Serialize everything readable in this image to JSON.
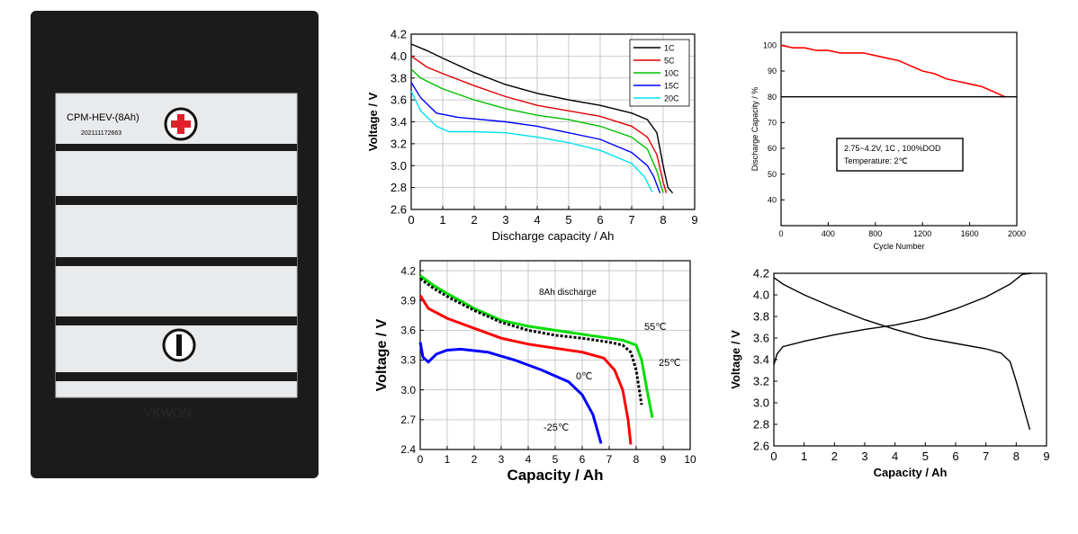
{
  "battery_photo": {
    "model_label": "CPM-HEV-(8Ah)",
    "serial_label": "202111172663",
    "positive_symbol": "+",
    "brand_mark": "VKWON"
  },
  "colors": {
    "1C": "#000000",
    "5C": "#e00000",
    "10C": "#00c000",
    "15C": "#0000ff",
    "20C": "#00e0f0",
    "55C": "#00dd00",
    "25C": "#000000",
    "0C": "#ff0000",
    "-25C": "#0000ff",
    "cycle": "#ff0000",
    "reference": "#000000"
  },
  "chart_data": [
    {
      "type": "line",
      "xlabel": "Discharge capacity / Ah",
      "ylabel": "Voltage / V",
      "xlim": [
        0,
        9
      ],
      "ylim": [
        2.6,
        4.2
      ],
      "xticks": [
        0,
        1,
        2,
        3,
        4,
        5,
        6,
        7,
        8,
        9
      ],
      "yticks": [
        2.6,
        2.8,
        3.0,
        3.2,
        3.4,
        3.6,
        3.8,
        4.0,
        4.2
      ],
      "grid": true,
      "legend": "top-right",
      "series": [
        {
          "name": "1C",
          "color_key": "1C",
          "x": [
            0,
            0.5,
            1,
            2,
            3,
            4,
            5,
            6,
            7,
            7.5,
            7.8,
            8.0,
            8.15,
            8.3
          ],
          "y": [
            4.11,
            4.05,
            3.98,
            3.85,
            3.74,
            3.66,
            3.6,
            3.55,
            3.48,
            3.42,
            3.3,
            3.0,
            2.8,
            2.75
          ]
        },
        {
          "name": "5C",
          "color_key": "5C",
          "x": [
            0,
            0.5,
            1,
            2,
            3,
            4,
            5,
            6,
            7,
            7.5,
            7.8,
            8.0,
            8.1
          ],
          "y": [
            4.0,
            3.9,
            3.84,
            3.73,
            3.63,
            3.55,
            3.5,
            3.45,
            3.36,
            3.26,
            3.1,
            2.85,
            2.75
          ]
        },
        {
          "name": "10C",
          "color_key": "10C",
          "x": [
            0,
            0.3,
            1,
            2,
            3,
            4,
            5,
            6,
            7,
            7.5,
            7.8,
            8.0
          ],
          "y": [
            3.88,
            3.8,
            3.7,
            3.6,
            3.52,
            3.46,
            3.42,
            3.36,
            3.26,
            3.15,
            2.95,
            2.75
          ]
        },
        {
          "name": "15C",
          "color_key": "15C",
          "x": [
            0,
            0.3,
            0.8,
            1.5,
            3,
            4,
            5,
            6,
            7,
            7.5,
            7.7,
            7.9
          ],
          "y": [
            3.76,
            3.62,
            3.48,
            3.44,
            3.4,
            3.36,
            3.3,
            3.24,
            3.12,
            3.0,
            2.9,
            2.75
          ]
        },
        {
          "name": "20C",
          "color_key": "20C",
          "x": [
            0,
            0.3,
            0.8,
            1.2,
            2,
            3,
            4,
            5,
            6,
            7,
            7.4,
            7.65
          ],
          "y": [
            3.68,
            3.5,
            3.36,
            3.31,
            3.31,
            3.3,
            3.26,
            3.21,
            3.14,
            3.02,
            2.9,
            2.76
          ]
        }
      ]
    },
    {
      "type": "line",
      "xlabel": "Cycle Number",
      "ylabel": "Discharge Capacity / %",
      "xlim": [
        0,
        2000
      ],
      "ylim": [
        30,
        105
      ],
      "xticks": [
        0,
        400,
        800,
        1200,
        1600,
        2000
      ],
      "yticks": [
        40,
        50,
        60,
        70,
        80,
        90,
        100
      ],
      "grid": false,
      "annotation": [
        "2.75~4.2V, 1C , 100%DOD",
        "Temperature: 2℃"
      ],
      "series": [
        {
          "color_key": "cycle",
          "x": [
            0,
            100,
            200,
            300,
            400,
            500,
            600,
            700,
            800,
            900,
            1000,
            1100,
            1200,
            1300,
            1400,
            1500,
            1600,
            1700,
            1800,
            1900
          ],
          "y": [
            100,
            99,
            99,
            98,
            98,
            97,
            97,
            97,
            96,
            95,
            94,
            92,
            90,
            89,
            87,
            86,
            85,
            84,
            82,
            80
          ]
        },
        {
          "color_key": "reference",
          "x": [
            0,
            2000
          ],
          "y": [
            80,
            80
          ]
        }
      ]
    },
    {
      "type": "line",
      "title": "8Ah discharge",
      "xlabel": "Capacity  / Ah",
      "ylabel": "Voltage / V",
      "xlim": [
        0,
        10
      ],
      "ylim": [
        2.4,
        4.3
      ],
      "xticks": [
        0,
        1,
        2,
        3,
        4,
        5,
        6,
        7,
        8,
        9,
        10
      ],
      "yticks": [
        2.4,
        2.7,
        3.0,
        3.3,
        3.6,
        3.9,
        4.2
      ],
      "grid": true,
      "series": [
        {
          "name": "55℃",
          "color_key": "55C",
          "x": [
            0,
            0.5,
            1,
            2,
            3,
            4,
            5,
            6,
            7,
            7.5,
            8,
            8.2,
            8.4,
            8.6
          ],
          "y": [
            4.15,
            4.05,
            3.97,
            3.82,
            3.7,
            3.64,
            3.6,
            3.56,
            3.52,
            3.5,
            3.45,
            3.3,
            3.0,
            2.72
          ]
        },
        {
          "name": "25℃",
          "color_key": "25C",
          "x": [
            0,
            0.5,
            1,
            2,
            3,
            4,
            5,
            6,
            7,
            7.5,
            7.8,
            8.0,
            8.2
          ],
          "y": [
            4.12,
            4.02,
            3.94,
            3.8,
            3.68,
            3.6,
            3.55,
            3.52,
            3.48,
            3.45,
            3.38,
            3.2,
            2.85
          ]
        },
        {
          "name": "0℃",
          "color_key": "0C",
          "x": [
            0,
            0.3,
            1,
            2,
            3,
            4,
            5,
            6,
            6.8,
            7.2,
            7.5,
            7.7,
            7.8
          ],
          "y": [
            3.95,
            3.82,
            3.72,
            3.62,
            3.52,
            3.46,
            3.42,
            3.38,
            3.32,
            3.2,
            3.0,
            2.7,
            2.45
          ]
        },
        {
          "name": "-25℃",
          "color_key": "-25C",
          "x": [
            0,
            0.1,
            0.3,
            0.6,
            1,
            1.5,
            2.5,
            3.5,
            4.5,
            5.5,
            6.0,
            6.4,
            6.7
          ],
          "y": [
            3.48,
            3.33,
            3.28,
            3.36,
            3.4,
            3.41,
            3.38,
            3.3,
            3.2,
            3.08,
            2.95,
            2.75,
            2.46
          ]
        }
      ]
    },
    {
      "type": "line",
      "xlabel": "Capacity / Ah",
      "ylabel": "Voltage / V",
      "xlim": [
        0,
        9
      ],
      "ylim": [
        2.6,
        4.2
      ],
      "xticks": [
        0,
        1,
        2,
        3,
        4,
        5,
        6,
        7,
        8,
        9
      ],
      "yticks": [
        2.6,
        2.8,
        3.0,
        3.2,
        3.4,
        3.6,
        3.8,
        4.0,
        4.2
      ],
      "grid": false,
      "series": [
        {
          "color_key": "reference",
          "x": [
            0,
            0.3,
            1,
            2,
            3,
            4,
            5,
            6,
            7,
            7.5,
            7.8,
            8.0,
            8.2,
            8.35,
            8.45
          ],
          "y": [
            4.16,
            4.1,
            4.0,
            3.88,
            3.77,
            3.68,
            3.6,
            3.55,
            3.5,
            3.46,
            3.38,
            3.2,
            3.0,
            2.85,
            2.75
          ]
        },
        {
          "color_key": "reference",
          "x": [
            0,
            0.1,
            0.3,
            1,
            2,
            3,
            4,
            5,
            6,
            7,
            7.8,
            8.2,
            8.5
          ],
          "y": [
            3.35,
            3.45,
            3.52,
            3.57,
            3.63,
            3.68,
            3.72,
            3.78,
            3.87,
            3.98,
            4.1,
            4.19,
            4.2
          ]
        }
      ]
    }
  ]
}
